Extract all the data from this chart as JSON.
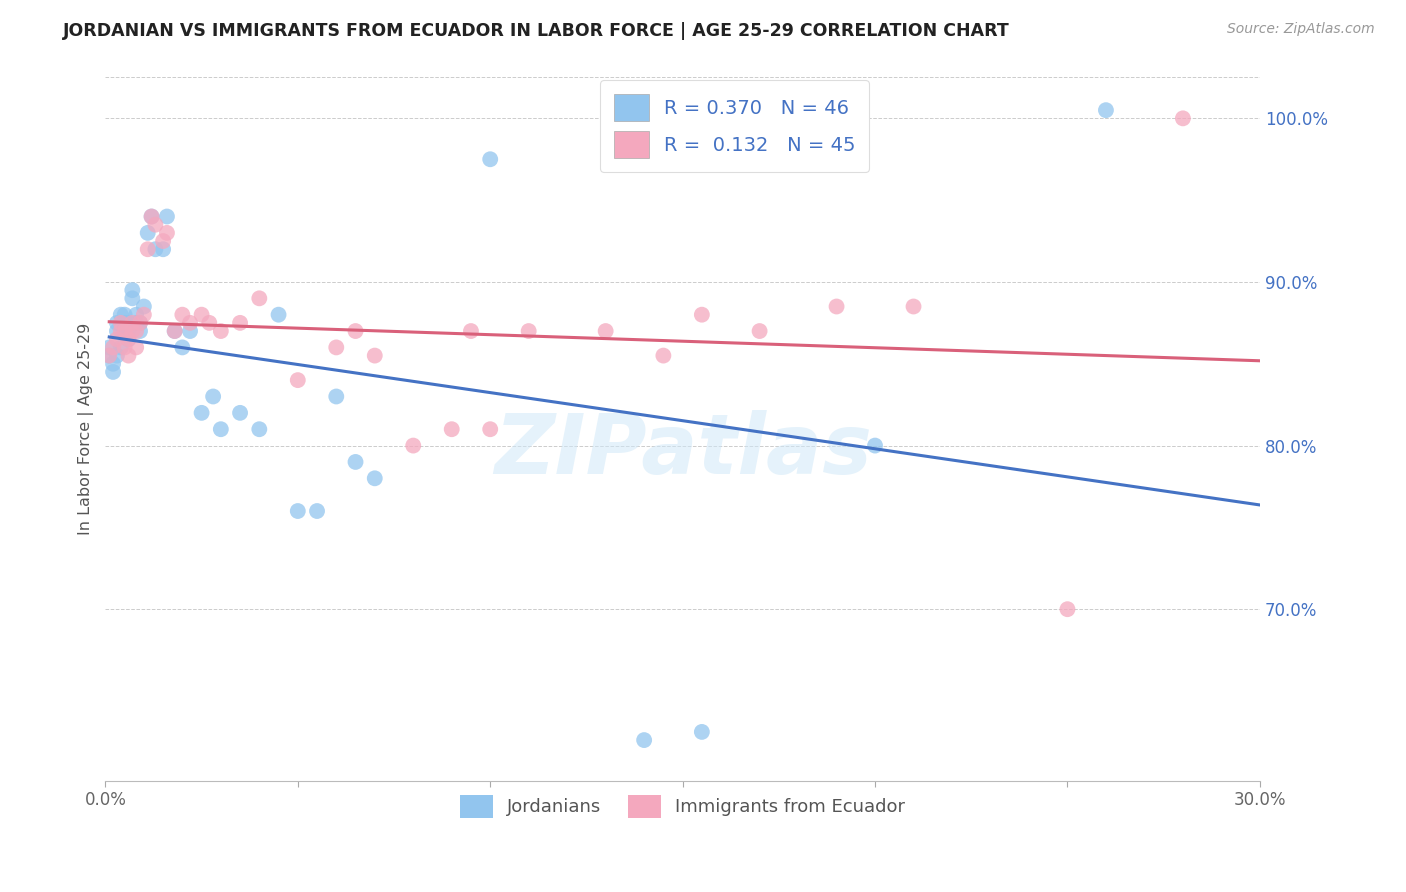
{
  "title": "JORDANIAN VS IMMIGRANTS FROM ECUADOR IN LABOR FORCE | AGE 25-29 CORRELATION CHART",
  "source": "Source: ZipAtlas.com",
  "ylabel": "In Labor Force | Age 25-29",
  "x_min": 0.0,
  "x_max": 0.3,
  "y_min": 0.595,
  "y_max": 1.025,
  "x_ticks": [
    0.0,
    0.05,
    0.1,
    0.15,
    0.2,
    0.25,
    0.3
  ],
  "x_tick_labels": [
    "0.0%",
    "",
    "",
    "",
    "",
    "",
    "30.0%"
  ],
  "y_ticks": [
    0.6,
    0.65,
    0.7,
    0.75,
    0.8,
    0.85,
    0.9,
    0.95,
    1.0
  ],
  "y_tick_labels_right": [
    "",
    "",
    "70.0%",
    "",
    "80.0%",
    "",
    "90.0%",
    "",
    "100.0%"
  ],
  "R_jordanian": 0.37,
  "N_jordanian": 46,
  "R_ecuador": 0.132,
  "N_ecuador": 45,
  "color_jordanian": "#92C5EE",
  "color_ecuador": "#F4A8BE",
  "line_color_jordanian": "#4472C4",
  "line_color_ecuador": "#D9607A",
  "watermark": "ZIPatlas",
  "jordanian_x": [
    0.001,
    0.001,
    0.002,
    0.002,
    0.003,
    0.003,
    0.003,
    0.004,
    0.004,
    0.005,
    0.005,
    0.005,
    0.006,
    0.006,
    0.006,
    0.007,
    0.007,
    0.008,
    0.008,
    0.009,
    0.009,
    0.01,
    0.011,
    0.012,
    0.013,
    0.015,
    0.016,
    0.018,
    0.02,
    0.022,
    0.025,
    0.028,
    0.03,
    0.035,
    0.04,
    0.045,
    0.05,
    0.055,
    0.06,
    0.065,
    0.07,
    0.1,
    0.14,
    0.155,
    0.2,
    0.26
  ],
  "jordanian_y": [
    0.855,
    0.86,
    0.845,
    0.85,
    0.87,
    0.875,
    0.855,
    0.86,
    0.88,
    0.87,
    0.875,
    0.88,
    0.865,
    0.87,
    0.875,
    0.89,
    0.895,
    0.875,
    0.88,
    0.87,
    0.875,
    0.885,
    0.93,
    0.94,
    0.92,
    0.92,
    0.94,
    0.87,
    0.86,
    0.87,
    0.82,
    0.83,
    0.81,
    0.82,
    0.81,
    0.88,
    0.76,
    0.76,
    0.83,
    0.79,
    0.78,
    0.975,
    0.62,
    0.625,
    0.8,
    1.005
  ],
  "ecuador_x": [
    0.001,
    0.002,
    0.003,
    0.004,
    0.004,
    0.005,
    0.005,
    0.006,
    0.006,
    0.007,
    0.007,
    0.008,
    0.008,
    0.009,
    0.01,
    0.011,
    0.012,
    0.013,
    0.015,
    0.016,
    0.018,
    0.02,
    0.022,
    0.025,
    0.027,
    0.03,
    0.035,
    0.04,
    0.05,
    0.06,
    0.065,
    0.07,
    0.08,
    0.09,
    0.095,
    0.1,
    0.11,
    0.13,
    0.145,
    0.155,
    0.17,
    0.19,
    0.21,
    0.25,
    0.28
  ],
  "ecuador_y": [
    0.855,
    0.86,
    0.865,
    0.87,
    0.875,
    0.86,
    0.87,
    0.855,
    0.865,
    0.87,
    0.875,
    0.86,
    0.87,
    0.875,
    0.88,
    0.92,
    0.94,
    0.935,
    0.925,
    0.93,
    0.87,
    0.88,
    0.875,
    0.88,
    0.875,
    0.87,
    0.875,
    0.89,
    0.84,
    0.86,
    0.87,
    0.855,
    0.8,
    0.81,
    0.87,
    0.81,
    0.87,
    0.87,
    0.855,
    0.88,
    0.87,
    0.885,
    0.885,
    0.7,
    1.0
  ]
}
